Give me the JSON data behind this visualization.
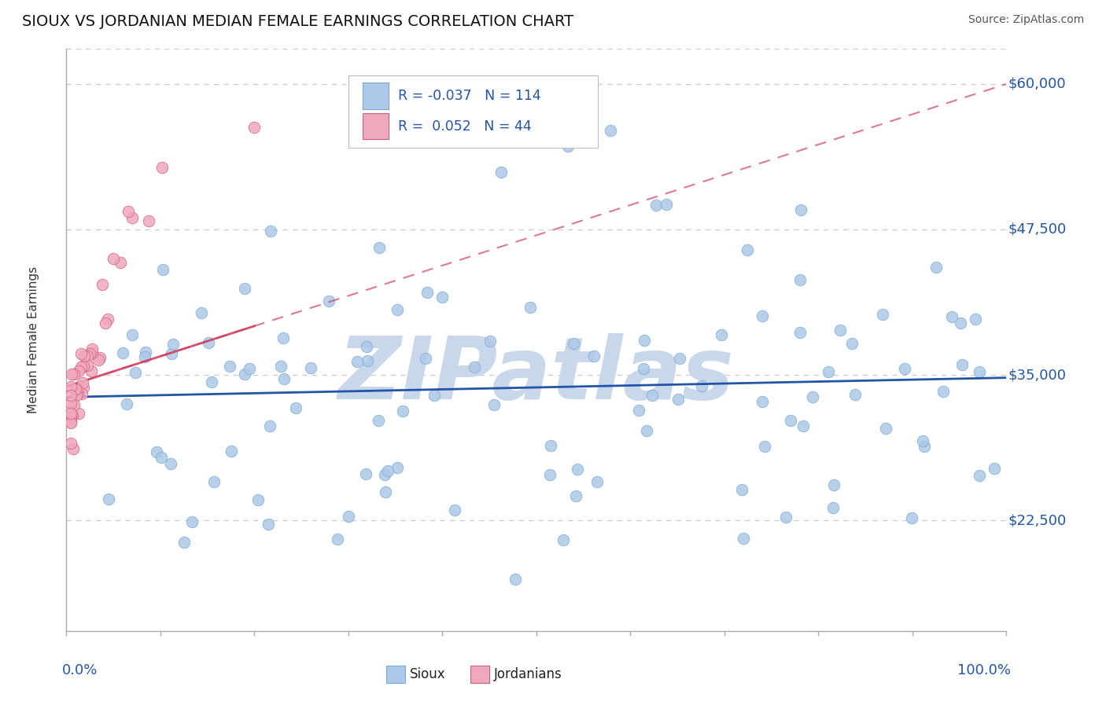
{
  "title": "SIOUX VS JORDANIAN MEDIAN FEMALE EARNINGS CORRELATION CHART",
  "source": "Source: ZipAtlas.com",
  "ylabel": "Median Female Earnings",
  "ylim": [
    13000,
    63000
  ],
  "xlim": [
    0.0,
    1.0
  ],
  "sioux_color": "#adc8e8",
  "sioux_edge": "#7aaad0",
  "jordanian_color": "#f0a8bc",
  "jordanian_edge": "#d06080",
  "sioux_trend_color": "#2255aa",
  "jordanian_trend_color": "#d04060",
  "background_color": "#ffffff",
  "grid_color": "#cccccc",
  "watermark": "ZIPatlas",
  "watermark_color": "#c8d8ea",
  "sioux_R": -0.037,
  "sioux_N": 114,
  "jordanian_R": 0.052,
  "jordanian_N": 44,
  "ytick_positions": [
    22500,
    35000,
    47500,
    60000
  ],
  "ytick_labels": [
    "$22,500",
    "$35,000",
    "$47,500",
    "$60,000"
  ],
  "legend_R1": "R = -0.037",
  "legend_N1": "N = 114",
  "legend_R2": "R =  0.052",
  "legend_N2": "N = 44"
}
